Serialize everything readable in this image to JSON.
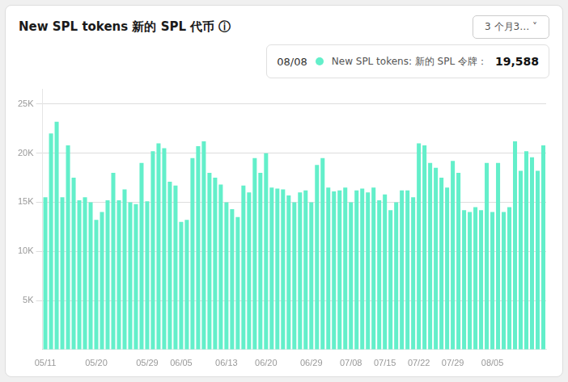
{
  "chart_data": {
    "type": "bar",
    "title": "New SPL tokens 新的 SPL 代币  ⓘ",
    "categories": [
      "05/11",
      null,
      null,
      null,
      null,
      null,
      null,
      null,
      null,
      "05/20",
      null,
      null,
      null,
      null,
      null,
      null,
      null,
      null,
      "05/29",
      null,
      null,
      null,
      null,
      null,
      "06/05",
      null,
      null,
      null,
      null,
      null,
      null,
      null,
      "06/13",
      null,
      null,
      null,
      null,
      null,
      null,
      "06/20",
      null,
      null,
      null,
      null,
      null,
      null,
      null,
      "06/29",
      null,
      null,
      null,
      null,
      null,
      null,
      "07/08",
      null,
      null,
      null,
      null,
      null,
      "07/15",
      null,
      null,
      null,
      null,
      null,
      "07/22",
      null,
      null,
      null,
      null,
      null,
      "07/29",
      null,
      null,
      null,
      null,
      null,
      null,
      "08/05",
      null,
      null,
      null,
      null,
      null,
      null,
      null,
      null,
      null
    ],
    "values": [
      15500,
      22000,
      23200,
      15500,
      20800,
      17500,
      15200,
      15500,
      15000,
      13200,
      14000,
      15200,
      18000,
      15200,
      16300,
      15000,
      14800,
      19000,
      15100,
      20200,
      21000,
      20500,
      17100,
      16700,
      13000,
      13200,
      19500,
      20700,
      21200,
      18000,
      17500,
      16800,
      15000,
      14300,
      13500,
      16700,
      16000,
      19500,
      18000,
      20000,
      16500,
      16400,
      16300,
      15700,
      15000,
      16000,
      16200,
      15000,
      18800,
      19500,
      16500,
      16100,
      16200,
      16500,
      15000,
      16200,
      16400,
      16000,
      16500,
      15200,
      15800,
      14200,
      15000,
      16200,
      16200,
      15500,
      21000,
      20800,
      19000,
      18500,
      17500,
      16500,
      19200,
      18000,
      14200,
      14000,
      14500,
      14200,
      19000,
      14000,
      19000,
      14000,
      14500,
      21200,
      18200,
      20200,
      19588,
      18200,
      20800
    ],
    "color": "#63efca",
    "ylim": [
      0,
      26500
    ],
    "yticks": [
      {
        "value": 5000,
        "label": "5K"
      },
      {
        "value": 10000,
        "label": "10K"
      },
      {
        "value": 15000,
        "label": "15K"
      },
      {
        "value": 20000,
        "label": "20K"
      },
      {
        "value": 25000,
        "label": "25K"
      }
    ],
    "grid": true,
    "annotations": [
      "3 个月3…  ˅",
      "08/08",
      "New SPL tokens: 新的 SPL 令牌：",
      "19,588"
    ]
  }
}
